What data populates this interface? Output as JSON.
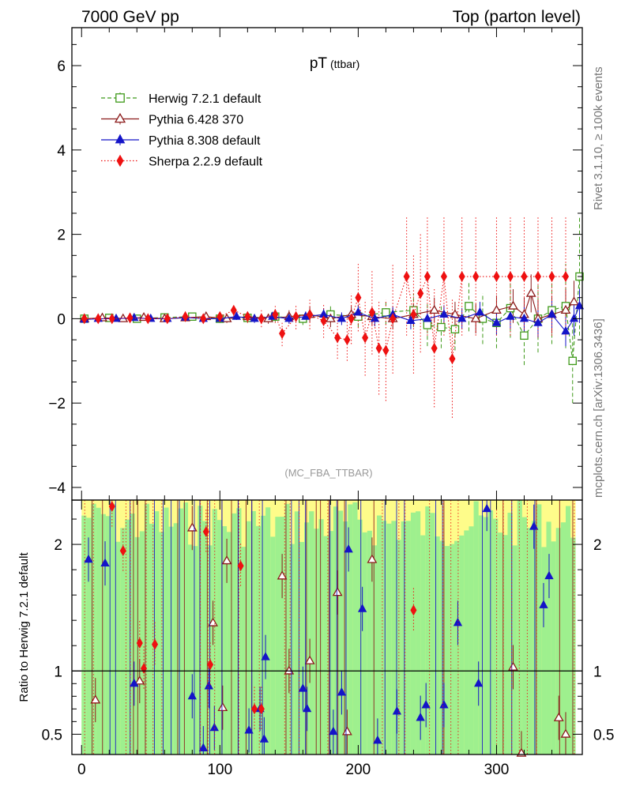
{
  "header": {
    "left": "7000 GeV pp",
    "right": "Top (parton level)"
  },
  "side_labels": {
    "rivet": "Rivet 3.1.10, ≥ 100k events",
    "mcplots": "mcplots.cern.ch [arXiv:1306.3436]"
  },
  "chart_data": [
    {
      "type": "scatter",
      "title": "pT",
      "title_suffix": "(ttbar)",
      "watermark": "(MC_FBA_TTBAR)",
      "xlabel": "",
      "ylabel": "",
      "xlim": [
        -7,
        362
      ],
      "ylim": [
        -4.3,
        6.9
      ],
      "yticks": [
        -4,
        -2,
        0,
        2,
        4,
        6
      ],
      "ytick_labels": [
        "−4",
        "−2",
        "0",
        "2",
        "4",
        "6"
      ],
      "legend": [
        "Herwig 7.2.1 default",
        "Pythia 6.428 370",
        "Pythia 8.308 default",
        "Sherpa 2.2.9 default"
      ],
      "legend_position": "top-left",
      "series": [
        {
          "name": "Herwig 7.2.1 default",
          "color": "#3f9a1a",
          "marker": "open-square",
          "line": "dashed",
          "x": [
            2,
            20,
            40,
            60,
            80,
            100,
            120,
            140,
            160,
            180,
            200,
            220,
            240,
            250,
            260,
            270,
            280,
            290,
            300,
            310,
            320,
            330,
            340,
            350,
            355,
            360
          ],
          "y": [
            0.0,
            0.02,
            0.0,
            0.03,
            0.05,
            0.0,
            0.02,
            0.05,
            0.0,
            0.1,
            0.05,
            0.15,
            0.2,
            -0.15,
            -0.2,
            -0.25,
            0.3,
            0.0,
            -0.1,
            0.25,
            -0.4,
            0.0,
            0.2,
            0.3,
            -1.0,
            1.0
          ],
          "err": [
            0.05,
            0.05,
            0.06,
            0.06,
            0.08,
            0.1,
            0.1,
            0.12,
            0.15,
            0.2,
            0.25,
            0.3,
            0.4,
            0.5,
            0.5,
            0.5,
            0.6,
            0.6,
            0.6,
            0.7,
            0.7,
            0.8,
            0.8,
            1.0,
            1.0,
            1.4
          ]
        },
        {
          "name": "Pythia 6.428 370",
          "color": "#8b1a1a",
          "marker": "open-triangle",
          "line": "solid",
          "x": [
            2,
            15,
            30,
            45,
            60,
            75,
            90,
            105,
            120,
            135,
            150,
            165,
            180,
            195,
            210,
            225,
            240,
            255,
            270,
            285,
            300,
            312,
            320,
            325,
            330,
            340,
            350,
            356
          ],
          "y": [
            0.0,
            0.02,
            0.0,
            0.03,
            0.0,
            0.02,
            0.05,
            0.0,
            0.05,
            0.0,
            0.05,
            0.1,
            0.0,
            0.1,
            0.05,
            0.0,
            0.1,
            0.2,
            0.1,
            0.0,
            0.2,
            0.3,
            0.1,
            0.6,
            0.0,
            0.1,
            0.2,
            0.4
          ],
          "err": [
            0.03,
            0.04,
            0.05,
            0.05,
            0.06,
            0.07,
            0.08,
            0.1,
            0.1,
            0.12,
            0.15,
            0.18,
            0.2,
            0.2,
            0.22,
            0.25,
            0.25,
            0.3,
            0.3,
            0.35,
            0.35,
            0.4,
            0.4,
            0.45,
            0.45,
            0.45,
            0.5,
            0.5
          ]
        },
        {
          "name": "Pythia 8.308 default",
          "color": "#1414c8",
          "marker": "filled-triangle",
          "line": "solid",
          "x": [
            2,
            12,
            25,
            38,
            50,
            62,
            75,
            88,
            100,
            112,
            125,
            138,
            150,
            162,
            175,
            188,
            200,
            212,
            225,
            238,
            250,
            262,
            275,
            288,
            300,
            310,
            320,
            330,
            340,
            350,
            356,
            360
          ],
          "y": [
            -0.02,
            0.0,
            0.0,
            0.02,
            0.0,
            0.0,
            0.03,
            0.0,
            0.0,
            0.05,
            0.0,
            0.05,
            0.0,
            0.05,
            0.1,
            0.0,
            0.15,
            0.0,
            0.1,
            -0.05,
            0.0,
            0.1,
            0.0,
            0.15,
            -0.1,
            0.05,
            0.0,
            -0.1,
            0.1,
            -0.3,
            0.0,
            0.3
          ],
          "err": [
            0.03,
            0.03,
            0.04,
            0.04,
            0.05,
            0.05,
            0.06,
            0.07,
            0.08,
            0.08,
            0.1,
            0.1,
            0.12,
            0.12,
            0.15,
            0.15,
            0.18,
            0.18,
            0.2,
            0.2,
            0.22,
            0.22,
            0.25,
            0.25,
            0.28,
            0.3,
            0.3,
            0.32,
            0.32,
            0.35,
            0.4,
            0.4
          ]
        },
        {
          "name": "Sherpa 2.2.9 default",
          "color": "#ee1111",
          "marker": "filled-diamond",
          "line": "dotted",
          "x": [
            2,
            12,
            22,
            35,
            48,
            62,
            75,
            88,
            100,
            110,
            120,
            130,
            140,
            145,
            155,
            165,
            175,
            185,
            192,
            195,
            200,
            205,
            210,
            215,
            220,
            225,
            235,
            240,
            245,
            250,
            255,
            262,
            268,
            275,
            285,
            300,
            310,
            320,
            330,
            340,
            350
          ],
          "y": [
            0.0,
            0.0,
            0.0,
            0.02,
            0.0,
            0.0,
            0.05,
            0.0,
            0.05,
            0.2,
            0.05,
            0.0,
            0.1,
            -0.35,
            0.05,
            0.1,
            -0.05,
            -0.45,
            -0.5,
            0.0,
            0.5,
            -0.45,
            0.15,
            -0.7,
            -0.75,
            0.0,
            1.0,
            0.1,
            0.6,
            1.0,
            -0.7,
            1.0,
            -0.95,
            1.0,
            1.0,
            1.0,
            1.0,
            1.0,
            1.0,
            1.0,
            1.0
          ],
          "err": [
            0.05,
            0.05,
            0.05,
            0.06,
            0.06,
            0.07,
            0.08,
            0.1,
            0.1,
            0.15,
            0.15,
            0.2,
            0.2,
            0.3,
            0.3,
            0.35,
            0.4,
            0.5,
            0.5,
            0.6,
            0.8,
            0.9,
            1.0,
            1.1,
            1.2,
            1.3,
            1.4,
            1.4,
            1.4,
            1.4,
            1.4,
            1.4,
            1.4,
            1.4,
            1.4,
            1.4,
            1.4,
            1.4,
            1.4,
            1.4,
            1.4
          ]
        }
      ]
    },
    {
      "type": "scatter",
      "title": "Ratio to Herwig 7.2.1 default",
      "ylabel": "Ratio to Herwig 7.2.1 default",
      "xlim": [
        -7,
        362
      ],
      "ylim": [
        0.34,
        2.35
      ],
      "yticks": [
        0.5,
        1,
        2
      ],
      "ytick_labels": [
        "0.5",
        "1",
        "2"
      ],
      "xticks": [
        0,
        100,
        200,
        300
      ],
      "xtick_labels": [
        "0",
        "100",
        "200",
        "300"
      ],
      "reference_line": 1,
      "band_colors": {
        "inner": "#9ef08e",
        "outer": "#fefc8a"
      },
      "series": [
        {
          "name": "Pythia 6.428 370",
          "color": "#8b1a1a",
          "marker": "open-triangle",
          "x": [
            10,
            42,
            80,
            95,
            102,
            105,
            145,
            150,
            165,
            185,
            192,
            210,
            312,
            318,
            345,
            350
          ],
          "y": [
            0.77,
            0.92,
            2.13,
            1.38,
            0.71,
            1.87,
            1.75,
            1.0,
            1.08,
            1.62,
            0.52,
            1.88,
            1.03,
            0.35,
            0.63,
            0.5
          ]
        },
        {
          "name": "Pythia 8.308 default",
          "color": "#1414c8",
          "marker": "filled-triangle",
          "x": [
            5,
            17,
            38,
            80,
            88,
            92,
            96,
            121,
            129,
            132,
            133,
            160,
            163,
            182,
            188,
            193,
            203,
            214,
            228,
            245,
            249,
            262,
            272,
            287,
            293,
            327,
            334,
            338
          ],
          "y": [
            1.88,
            1.85,
            0.9,
            0.8,
            0.39,
            0.88,
            0.55,
            0.53,
            0.7,
            0.46,
            1.11,
            0.86,
            0.7,
            0.52,
            0.83,
            1.96,
            1.49,
            0.45,
            0.68,
            0.63,
            0.73,
            0.73,
            1.38,
            0.9,
            2.28,
            2.14,
            1.52,
            1.75
          ]
        },
        {
          "name": "Sherpa 2.2.9 default",
          "color": "#ee1111",
          "marker": "filled-diamond",
          "x": [
            22,
            30,
            42,
            45,
            53,
            90,
            93,
            115,
            125,
            130,
            240
          ],
          "y": [
            2.3,
            1.95,
            1.22,
            1.02,
            1.21,
            2.1,
            1.05,
            1.83,
            0.7,
            0.7,
            1.48
          ]
        }
      ]
    }
  ]
}
